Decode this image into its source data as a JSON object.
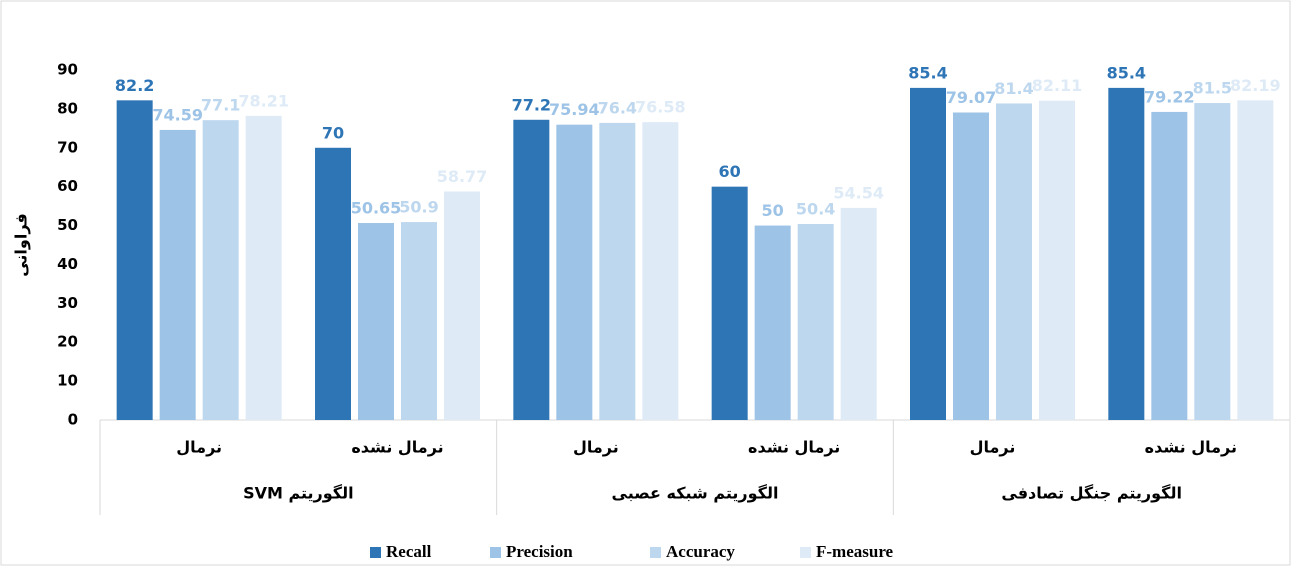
{
  "chart_data": {
    "type": "bar",
    "y_label": "فراوانی",
    "categories": [
      "نرمال",
      "نرمال نشده",
      "نرمال",
      "نرمال نشده",
      "نرمال",
      "نرمال نشده"
    ],
    "groups": [
      "الگوریتم SVM",
      "الگوریتم شبکه عصبی",
      "الگوریتم جنگل تصادفی"
    ],
    "series": [
      {
        "name": "Recall",
        "color": "#2e75b6",
        "label_color": "#2e75b6",
        "values": [
          82.2,
          70,
          77.2,
          60,
          85.4,
          85.4
        ]
      },
      {
        "name": "Precision",
        "color": "#9dc3e6",
        "label_color": "#9dc3e6",
        "values": [
          74.59,
          50.65,
          75.94,
          50,
          79.07,
          79.22
        ]
      },
      {
        "name": "Accuracy",
        "color": "#bdd7ee",
        "label_color": "#bdd7ee",
        "values": [
          77.1,
          50.9,
          76.4,
          50.4,
          81.4,
          81.5
        ]
      },
      {
        "name": "F-measure",
        "color": "#deebf7",
        "label_color": "#deebf7",
        "values": [
          78.21,
          58.77,
          76.58,
          54.54,
          82.11,
          82.19
        ]
      }
    ],
    "ylim": [
      0,
      90
    ],
    "yticks": [
      0,
      10,
      20,
      30,
      40,
      50,
      60,
      70,
      80,
      90
    ],
    "grid": false,
    "legend": "bottom"
  }
}
